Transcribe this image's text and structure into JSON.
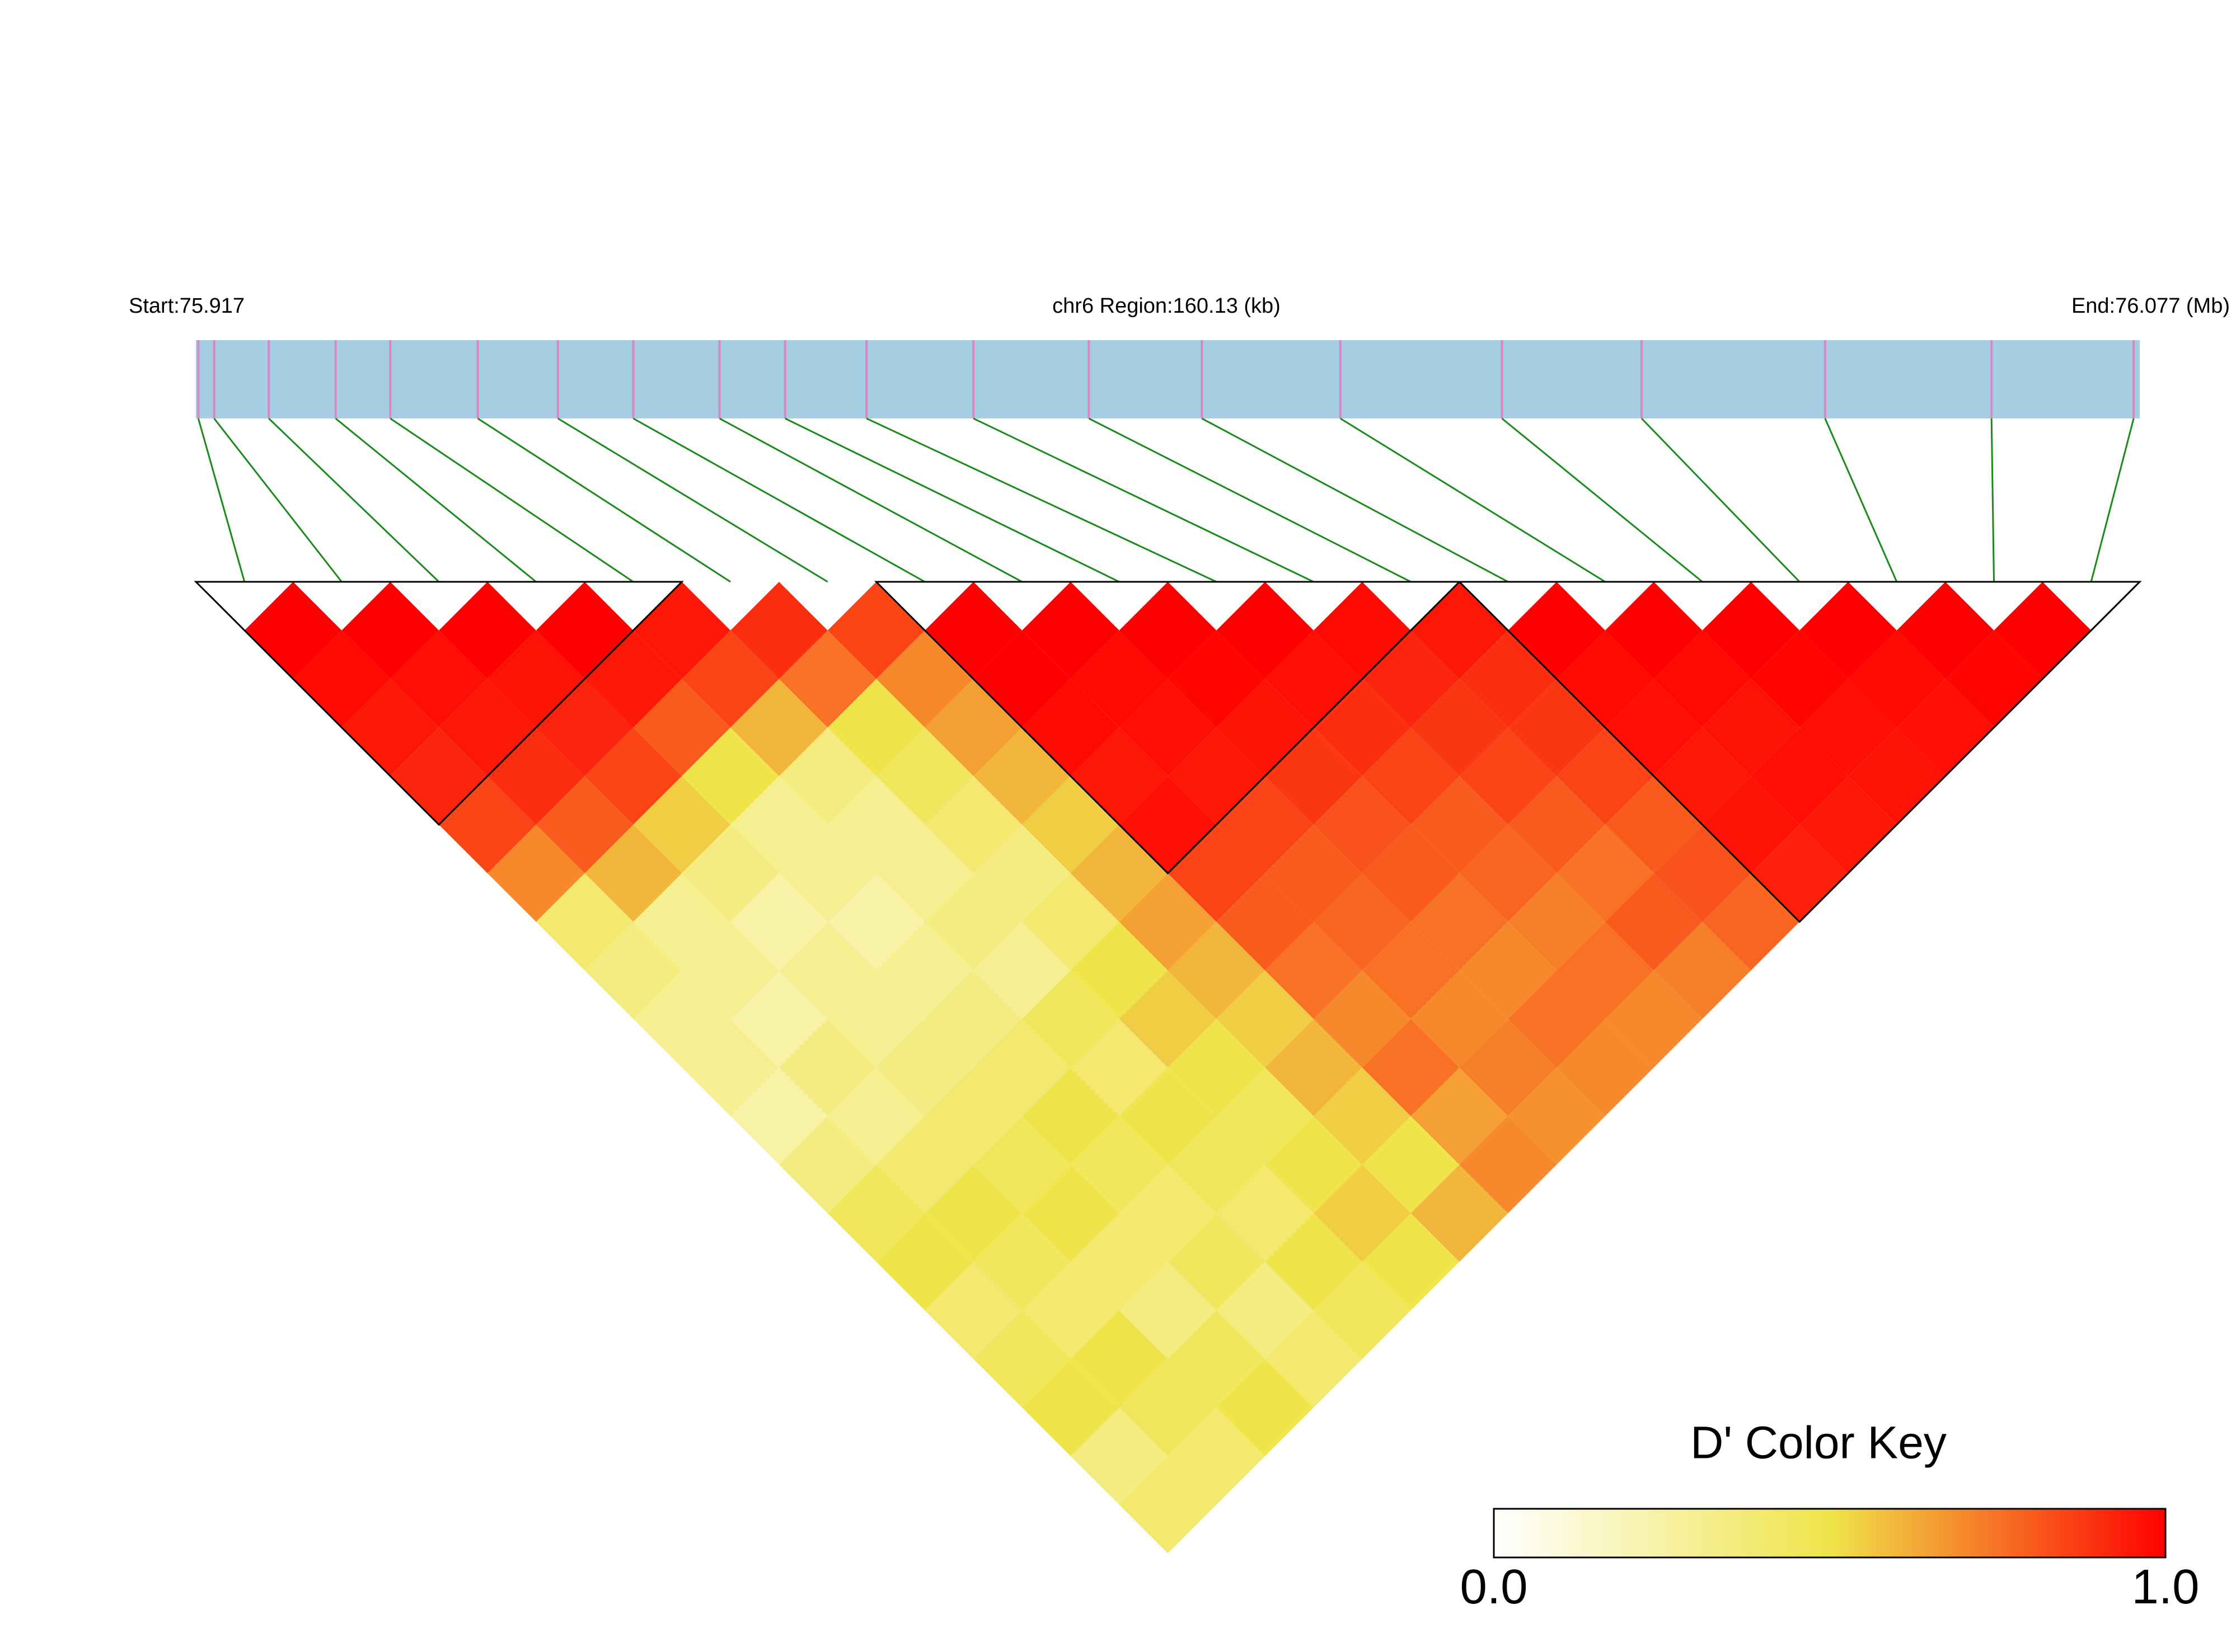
{
  "chart_data": {
    "type": "ld_heatmap",
    "start_label": "Start:75.917",
    "region_label": "chr6 Region:160.13 (kb)",
    "end_label": "End:76.077 (Mb)",
    "xlim": [
      75.917,
      76.077
    ],
    "snp_positions": [
      75.9172,
      75.9185,
      75.923,
      75.9285,
      75.933,
      75.9402,
      75.9468,
      75.953,
      75.9601,
      75.9655,
      75.9722,
      75.981,
      75.9905,
      75.9998,
      76.0112,
      76.0245,
      76.036,
      76.0511,
      76.0648,
      76.0765
    ],
    "matrix": [
      [
        1,
        0.98,
        0.95,
        0.92,
        0.85,
        0.7,
        0.4,
        0.35,
        0.3,
        0.3,
        0.25,
        0.35,
        0.45,
        0.5,
        0.4,
        0.45,
        0.5,
        0.35,
        0.4
      ],
      [
        1,
        0.97,
        0.95,
        0.9,
        0.8,
        0.6,
        0.3,
        0.3,
        0.25,
        0.35,
        0.3,
        0.4,
        0.5,
        0.45,
        0.4,
        0.5,
        0.45,
        0.4
      ],
      [
        1,
        0.96,
        0.92,
        0.85,
        0.55,
        0.35,
        0.25,
        0.3,
        0.3,
        0.35,
        0.4,
        0.45,
        0.5,
        0.4,
        0.35,
        0.45,
        0.5
      ],
      [
        1,
        0.95,
        0.8,
        0.5,
        0.3,
        0.3,
        0.25,
        0.3,
        0.35,
        0.4,
        0.5,
        0.45,
        0.4,
        0.45,
        0.35,
        0.4
      ],
      [
        0.95,
        0.85,
        0.6,
        0.35,
        0.3,
        0.3,
        0.35,
        0.3,
        0.45,
        0.4,
        0.5,
        0.45,
        0.4,
        0.5,
        0.45
      ],
      [
        0.9,
        0.75,
        0.5,
        0.45,
        0.4,
        0.35,
        0.4,
        0.5,
        0.55,
        0.5,
        0.45,
        0.5,
        0.55,
        0.5
      ],
      [
        0.85,
        0.7,
        0.65,
        0.6,
        0.55,
        0.6,
        0.65,
        0.6,
        0.55,
        0.6,
        0.55,
        0.5,
        0.6
      ],
      [
        1,
        1,
        0.98,
        0.95,
        0.97,
        0.85,
        0.8,
        0.75,
        0.7,
        0.75,
        0.65,
        0.7
      ],
      [
        1,
        0.98,
        0.97,
        0.95,
        0.85,
        0.8,
        0.78,
        0.75,
        0.7,
        0.72,
        0.68
      ],
      [
        1,
        0.99,
        0.96,
        0.88,
        0.82,
        0.8,
        0.75,
        0.7,
        0.75,
        0.7
      ],
      [
        1,
        0.97,
        0.9,
        0.85,
        0.8,
        0.78,
        0.72,
        0.75,
        0.7
      ],
      [
        0.98,
        0.92,
        0.88,
        0.85,
        0.8,
        0.75,
        0.8,
        0.72
      ],
      [
        0.95,
        0.9,
        0.88,
        0.85,
        0.8,
        0.82,
        0.78
      ],
      [
        1,
        0.98,
        0.97,
        0.95,
        0.96,
        0.93
      ],
      [
        1,
        0.98,
        0.96,
        0.97,
        0.95
      ],
      [
        1,
        0.99,
        0.97,
        0.96
      ],
      [
        1,
        0.98,
        0.97
      ],
      [
        1,
        0.99
      ],
      [
        1
      ]
    ],
    "blocks": [
      [
        0,
        4
      ],
      [
        7,
        12
      ],
      [
        13,
        19
      ]
    ],
    "bar_color": "#a6cee3",
    "tick_color": "#de85c6",
    "link_color": "#1a8a1a",
    "colorbar_title": "D' Color Key",
    "colormap": [
      "#ffffff",
      "#efe44a",
      "#ff0000"
    ],
    "clim": [
      0,
      1
    ],
    "cticks": [
      {
        "value": 0,
        "label": "0.0"
      },
      {
        "value": 1,
        "label": "1.0"
      }
    ]
  }
}
